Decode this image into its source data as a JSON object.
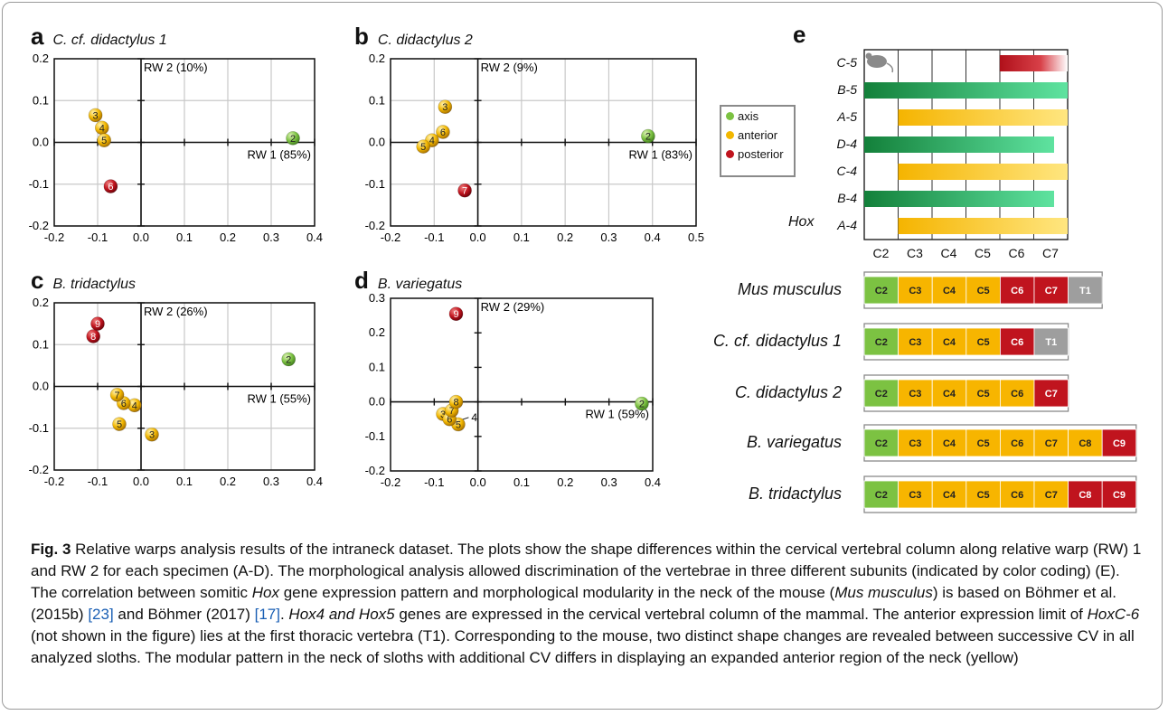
{
  "figure": {
    "label": "Fig. 3"
  },
  "chart_data": [
    {
      "type": "scatter",
      "panel": "a",
      "title": "C. cf. didactylus 1",
      "xlim": [
        -0.2,
        0.4
      ],
      "ylim": [
        -0.2,
        0.2
      ],
      "xticks": [
        "-0.2",
        "-0.1",
        "0.0",
        "0.1",
        "0.2",
        "0.3",
        "0.4"
      ],
      "yticks": [
        "0.2",
        "0.1",
        "0.0",
        "-0.1",
        "-0.2"
      ],
      "axis1_label": "RW 1 (85%)",
      "axis2_label": "RW 2 (10%)",
      "grid": true,
      "points": [
        {
          "label": "2",
          "x": 0.35,
          "y": 0.01,
          "group": "axis"
        },
        {
          "label": "3",
          "x": -0.105,
          "y": 0.065,
          "group": "anterior"
        },
        {
          "label": "4",
          "x": -0.09,
          "y": 0.035,
          "group": "anterior"
        },
        {
          "label": "5",
          "x": -0.085,
          "y": 0.005,
          "group": "anterior"
        },
        {
          "label": "6",
          "x": -0.07,
          "y": -0.105,
          "group": "posterior"
        }
      ]
    },
    {
      "type": "scatter",
      "panel": "b",
      "title": "C. didactylus 2",
      "xlim": [
        -0.2,
        0.5
      ],
      "ylim": [
        -0.2,
        0.2
      ],
      "xticks": [
        "-0.2",
        "-0.1",
        "0.0",
        "0.1",
        "0.2",
        "0.3",
        "0.4",
        "0.5"
      ],
      "yticks": [
        "0.2",
        "0.1",
        "0.0",
        "-0.1",
        "-0.2"
      ],
      "axis1_label": "RW 1 (83%)",
      "axis2_label": "RW 2 (9%)",
      "grid": true,
      "points": [
        {
          "label": "2",
          "x": 0.39,
          "y": 0.015,
          "group": "axis"
        },
        {
          "label": "3",
          "x": -0.075,
          "y": 0.085,
          "group": "anterior"
        },
        {
          "label": "4",
          "x": -0.105,
          "y": 0.005,
          "group": "anterior"
        },
        {
          "label": "5",
          "x": -0.125,
          "y": -0.01,
          "group": "anterior"
        },
        {
          "label": "6",
          "x": -0.08,
          "y": 0.025,
          "group": "anterior"
        },
        {
          "label": "7",
          "x": -0.03,
          "y": -0.115,
          "group": "posterior"
        }
      ]
    },
    {
      "type": "scatter",
      "panel": "c",
      "title": "B. tridactylus",
      "xlim": [
        -0.2,
        0.4
      ],
      "ylim": [
        -0.2,
        0.2
      ],
      "xticks": [
        "-0.2",
        "-0.1",
        "0.0",
        "0.1",
        "0.2",
        "0.3",
        "0.4"
      ],
      "yticks": [
        "0.2",
        "0.1",
        "0.0",
        "-0.1",
        "-0.2"
      ],
      "axis1_label": "RW 1 (55%)",
      "axis2_label": "RW 2 (26%)",
      "grid": true,
      "points": [
        {
          "label": "2",
          "x": 0.34,
          "y": 0.065,
          "group": "axis"
        },
        {
          "label": "3",
          "x": 0.025,
          "y": -0.115,
          "group": "anterior"
        },
        {
          "label": "4",
          "x": -0.015,
          "y": -0.045,
          "group": "anterior"
        },
        {
          "label": "5",
          "x": -0.05,
          "y": -0.09,
          "group": "anterior"
        },
        {
          "label": "6",
          "x": -0.04,
          "y": -0.04,
          "group": "anterior"
        },
        {
          "label": "7",
          "x": -0.055,
          "y": -0.02,
          "group": "anterior"
        },
        {
          "label": "8",
          "x": -0.11,
          "y": 0.12,
          "group": "posterior"
        },
        {
          "label": "9",
          "x": -0.1,
          "y": 0.15,
          "group": "posterior"
        }
      ]
    },
    {
      "type": "scatter",
      "panel": "d",
      "title": "B. variegatus",
      "xlim": [
        -0.2,
        0.4
      ],
      "ylim": [
        -0.2,
        0.3
      ],
      "xticks": [
        "-0.2",
        "-0.1",
        "0.0",
        "0.1",
        "0.2",
        "0.3",
        "0.4"
      ],
      "yticks": [
        "0.3",
        "0.2",
        "0.1",
        "0.0",
        "-0.1",
        "-0.2"
      ],
      "axis1_label": "RW 1 (59%)",
      "axis2_label": "RW 2 (29%)",
      "grid": false,
      "points": [
        {
          "label": "2",
          "x": 0.375,
          "y": -0.005,
          "group": "axis"
        },
        {
          "label": "3",
          "x": -0.08,
          "y": -0.035,
          "group": "anterior"
        },
        {
          "label": "5",
          "x": -0.045,
          "y": -0.065,
          "group": "anterior"
        },
        {
          "label": "6",
          "x": -0.065,
          "y": -0.05,
          "group": "anterior"
        },
        {
          "label": "7",
          "x": -0.06,
          "y": -0.025,
          "group": "anterior"
        },
        {
          "label": "8",
          "x": -0.05,
          "y": 0.0,
          "group": "anterior"
        },
        {
          "label": "9",
          "x": -0.05,
          "y": 0.255,
          "group": "posterior"
        }
      ],
      "annotations": [
        {
          "text": "4",
          "x": -0.015,
          "y": -0.045
        }
      ]
    }
  ],
  "legend": {
    "items": [
      {
        "label": "axis",
        "color": "#7cc242"
      },
      {
        "label": "anterior",
        "color": "#f2b700"
      },
      {
        "label": "posterior",
        "color": "#c0141e"
      }
    ]
  },
  "expression": {
    "letter": "e",
    "hox_label": "Hox",
    "columns": [
      "C2",
      "C3",
      "C4",
      "C5",
      "C6",
      "C7"
    ],
    "mouse_icon": "mouse-icon",
    "rows": [
      {
        "label": "C-5",
        "color": "red",
        "start": 4,
        "end": 6,
        "fade": true
      },
      {
        "label": "B-5",
        "color": "green",
        "start": 0,
        "end": 6
      },
      {
        "label": "A-5",
        "color": "yellow",
        "start": 1,
        "end": 6
      },
      {
        "label": "D-4",
        "color": "green",
        "start": 0,
        "end": 5.6
      },
      {
        "label": "C-4",
        "color": "yellow",
        "start": 1,
        "end": 6
      },
      {
        "label": "B-4",
        "color": "green",
        "start": 0,
        "end": 5.6
      },
      {
        "label": "A-4",
        "color": "yellow",
        "start": 1,
        "end": 6
      }
    ]
  },
  "modules": {
    "colors": {
      "axis": "#7cc242",
      "anterior": "#f7b500",
      "posterior": "#c0141e",
      "thoracic": "#9e9e9e"
    },
    "species": [
      {
        "name": "Mus musculus",
        "cells": [
          [
            "C2",
            "axis"
          ],
          [
            "C3",
            "anterior"
          ],
          [
            "C4",
            "anterior"
          ],
          [
            "C5",
            "anterior"
          ],
          [
            "C6",
            "posterior"
          ],
          [
            "C7",
            "posterior"
          ],
          [
            "T1",
            "thoracic"
          ]
        ]
      },
      {
        "name": "C. cf. didactylus 1",
        "cells": [
          [
            "C2",
            "axis"
          ],
          [
            "C3",
            "anterior"
          ],
          [
            "C4",
            "anterior"
          ],
          [
            "C5",
            "anterior"
          ],
          [
            "C6",
            "posterior"
          ],
          [
            "T1",
            "thoracic"
          ]
        ]
      },
      {
        "name": "C. didactylus 2",
        "cells": [
          [
            "C2",
            "axis"
          ],
          [
            "C3",
            "anterior"
          ],
          [
            "C4",
            "anterior"
          ],
          [
            "C5",
            "anterior"
          ],
          [
            "C6",
            "anterior"
          ],
          [
            "C7",
            "posterior"
          ]
        ]
      },
      {
        "name": "B. variegatus",
        "cells": [
          [
            "C2",
            "axis"
          ],
          [
            "C3",
            "anterior"
          ],
          [
            "C4",
            "anterior"
          ],
          [
            "C5",
            "anterior"
          ],
          [
            "C6",
            "anterior"
          ],
          [
            "C7",
            "anterior"
          ],
          [
            "C8",
            "anterior"
          ],
          [
            "C9",
            "posterior"
          ]
        ]
      },
      {
        "name": "B. tridactylus",
        "cells": [
          [
            "C2",
            "axis"
          ],
          [
            "C3",
            "anterior"
          ],
          [
            "C4",
            "anterior"
          ],
          [
            "C5",
            "anterior"
          ],
          [
            "C6",
            "anterior"
          ],
          [
            "C7",
            "anterior"
          ],
          [
            "C8",
            "posterior"
          ],
          [
            "C9",
            "posterior"
          ]
        ]
      }
    ]
  },
  "caption": {
    "label": "Fig. 3",
    "s1": " Relative warps analysis results of the intraneck dataset. The plots show the shape differences within the cervical vertebral column along relative warp (RW) 1 and RW 2 for each specimen (A-D). The morphological analysis allowed discrimination of the vertebrae in three different subunits (indicated by color coding) (E). The correlation between somitic ",
    "hox1": "Hox",
    "s2": " gene expression pattern and morphological modularity in the neck of the mouse (",
    "mus": "Mus musculus",
    "s3": ") is based on Böhmer et al. (2015b) ",
    "ref1": "[23]",
    "s4": " and Böhmer (2017) ",
    "ref2": "[17]",
    "s5": ". ",
    "hox45": "Hox4 and Hox5",
    "s6": " genes are expressed in the cervical vertebral column of the mammal. The anterior expression limit of ",
    "hoxc6": "HoxC-6",
    "s7": " (not shown in the figure) lies at the first thoracic vertebra (T1). Corresponding to the mouse, two distinct shape changes are revealed between successive CV in all analyzed sloths. The modular pattern in the neck of sloths with additional CV differs in displaying an expanded anterior region of the neck (yellow)"
  }
}
